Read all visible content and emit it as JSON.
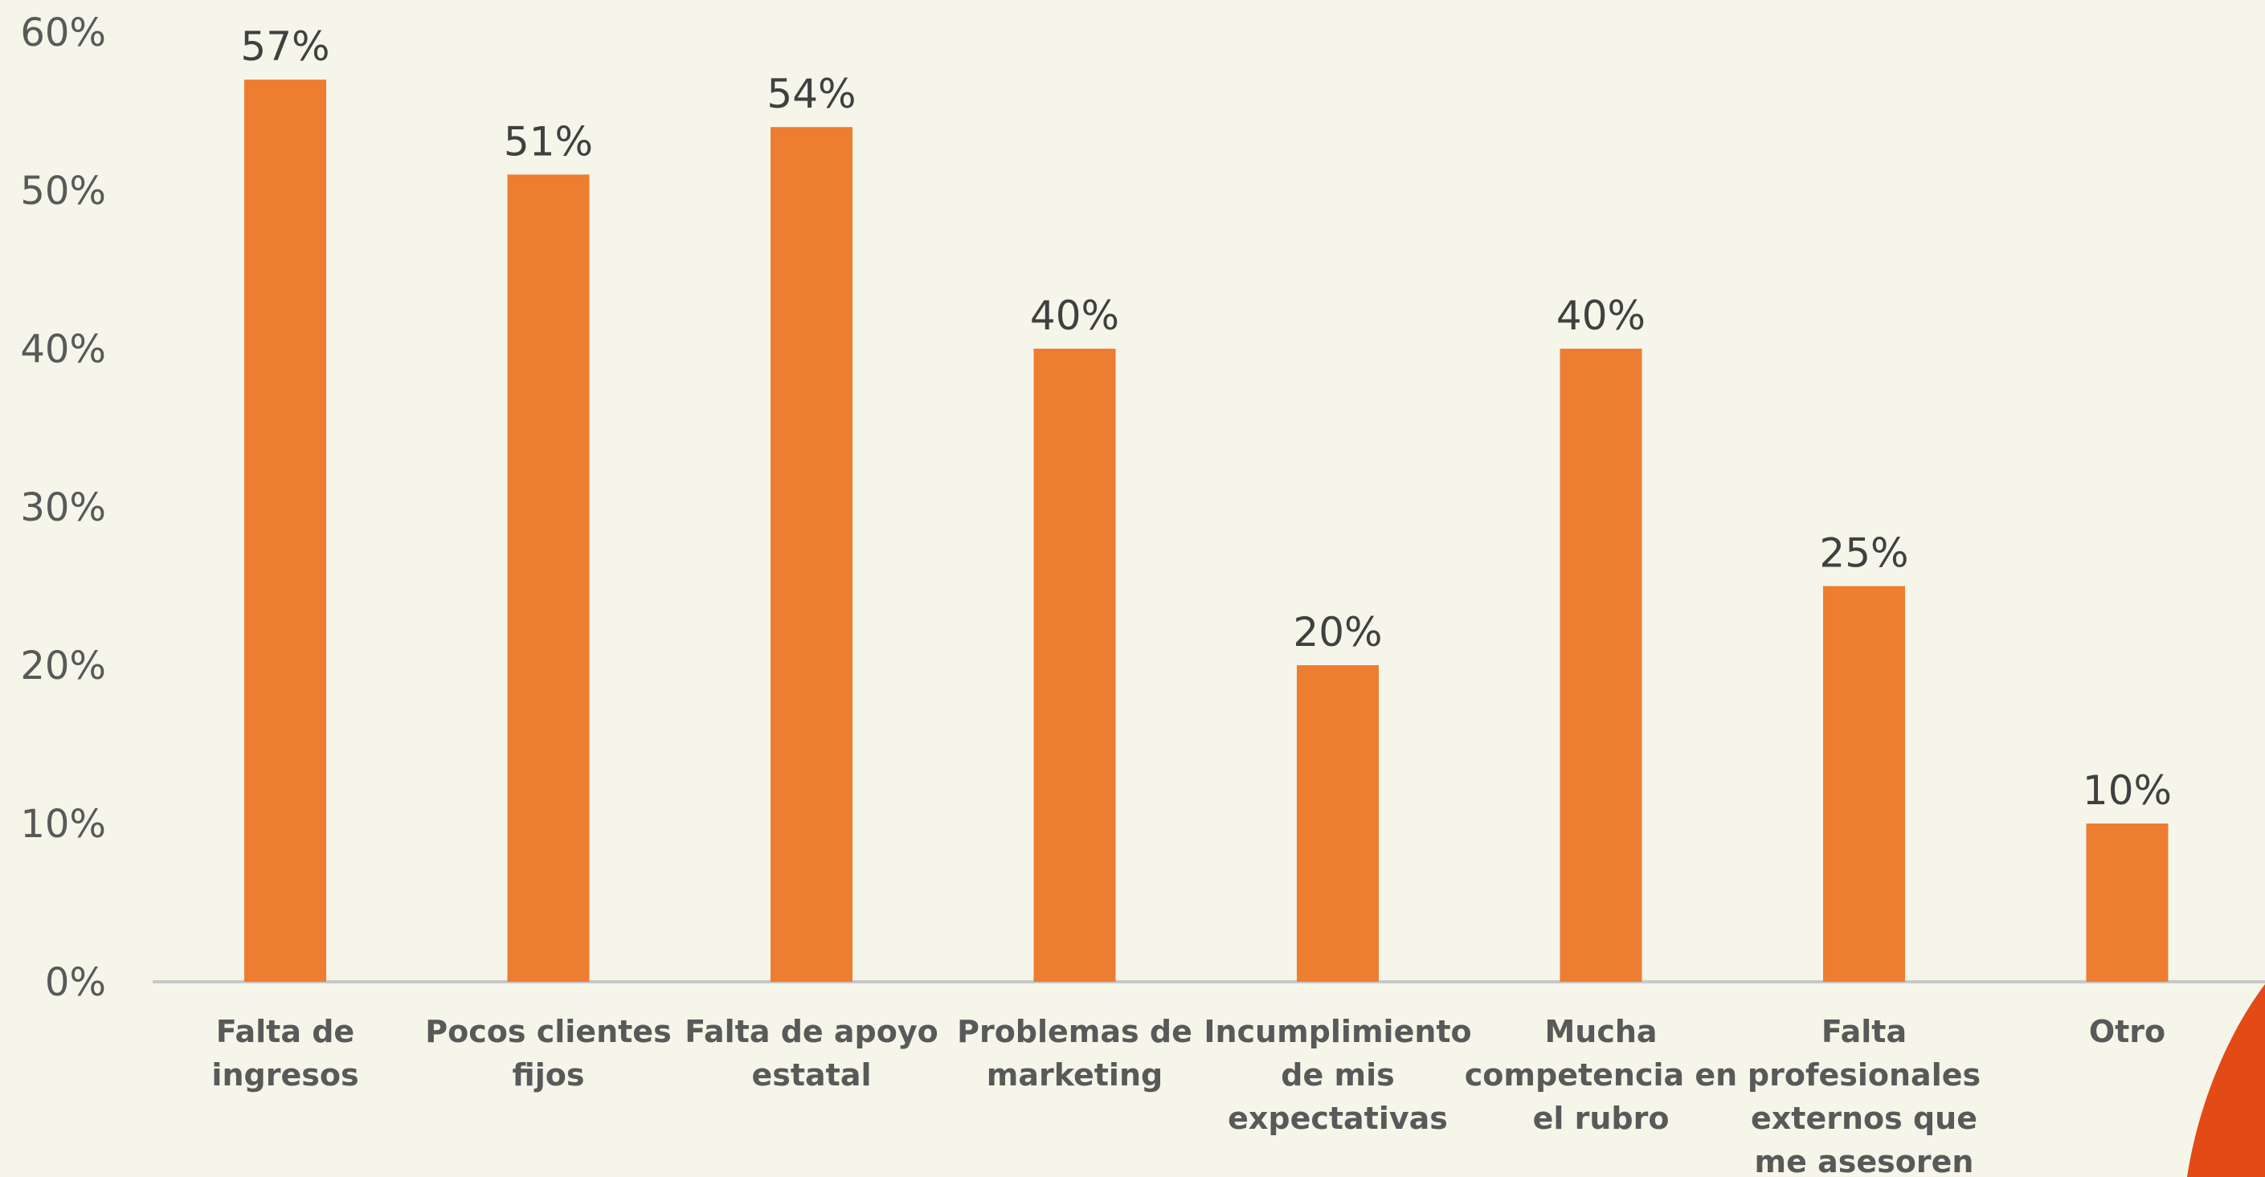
{
  "chart_data": {
    "type": "bar",
    "title": "",
    "xlabel": "",
    "ylabel": "",
    "categories": [
      [
        "Falta de",
        "ingresos"
      ],
      [
        "Pocos clientes",
        "fijos"
      ],
      [
        "Falta de apoyo",
        "estatal"
      ],
      [
        "Problemas de",
        "marketing"
      ],
      [
        "Incumplimiento",
        "de mis",
        "expectativas"
      ],
      [
        "Mucha",
        "competencia en",
        "el rubro"
      ],
      [
        "Falta",
        "profesionales",
        "externos que",
        "me asesoren"
      ],
      [
        "Otro"
      ]
    ],
    "values": [
      57,
      51,
      54,
      40,
      20,
      40,
      25,
      10
    ],
    "data_labels": [
      "57%",
      "51%",
      "54%",
      "40%",
      "20%",
      "40%",
      "25%",
      "10%"
    ],
    "y_ticks": [
      0,
      10,
      20,
      30,
      40,
      50,
      60
    ],
    "y_tick_labels": [
      "0%",
      "10%",
      "20%",
      "30%",
      "40%",
      "50%",
      "60%"
    ],
    "ylim": [
      0,
      60
    ],
    "grid": false,
    "legend": "none",
    "colors": {
      "bar": "#ed7d31",
      "background": "#f5f5e9",
      "axis": "#c8c8c8",
      "accent_shape": "#e24a16"
    }
  }
}
